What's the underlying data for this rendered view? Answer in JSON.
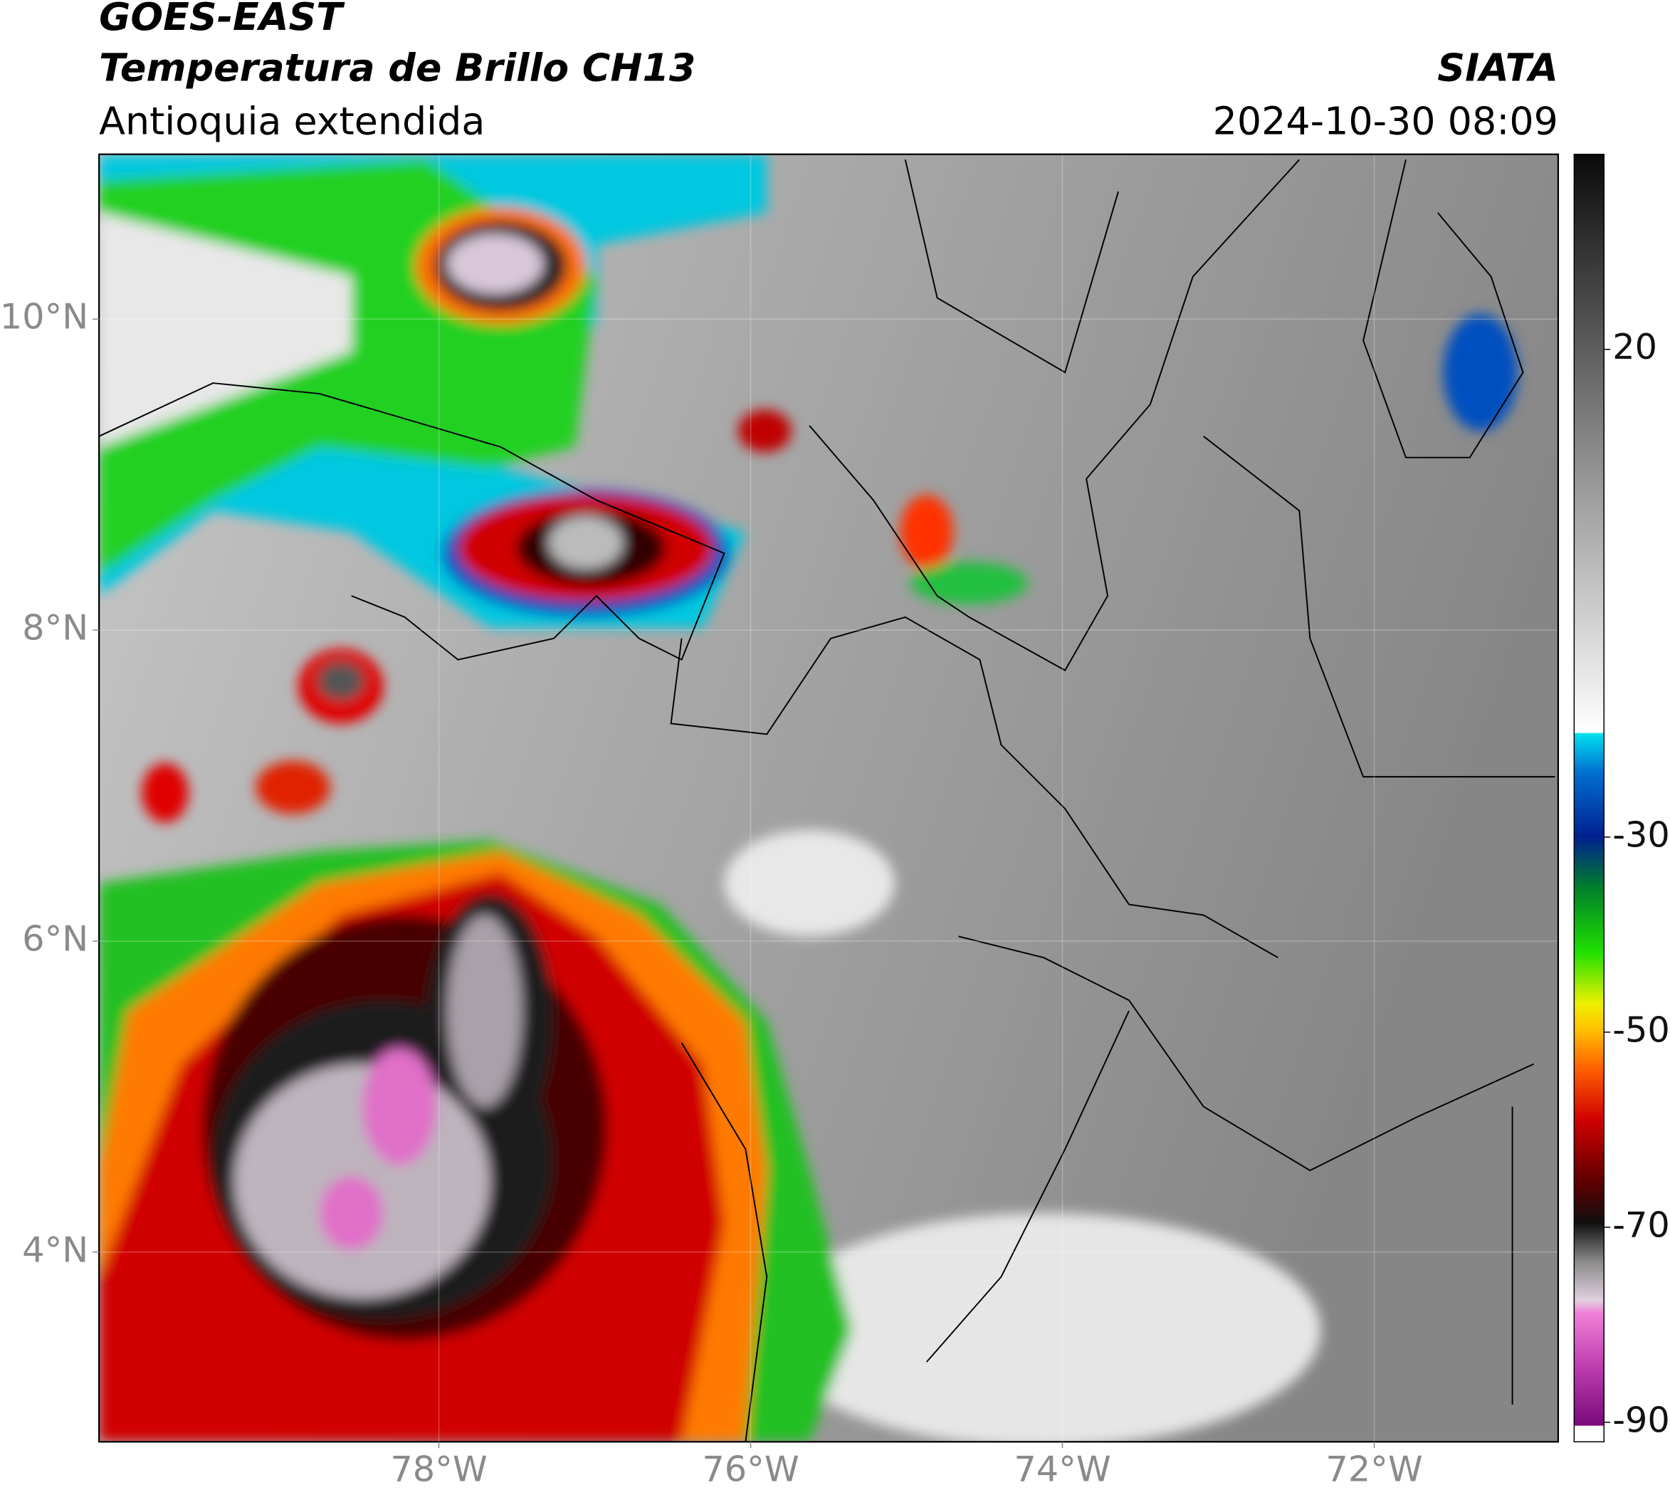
{
  "header": {
    "title": "GOES-EAST",
    "subtitle": "Temperatura de Brillo CH13",
    "region": "Antioquia extendida",
    "source": "SIATA",
    "datetime": "2024-10-30 08:09"
  },
  "map": {
    "lon_range": [
      -80.18,
      -70.82
    ],
    "lat_range": [
      2.78,
      11.06
    ],
    "lat_ticks": [
      {
        "value": 10,
        "label": "10°N"
      },
      {
        "value": 8,
        "label": "8°N"
      },
      {
        "value": 6,
        "label": "6°N"
      },
      {
        "value": 4,
        "label": "4°N"
      }
    ],
    "lon_ticks": [
      {
        "value": -78,
        "label": "78°W"
      },
      {
        "value": -76,
        "label": "76°W"
      },
      {
        "value": -74,
        "label": "74°W"
      },
      {
        "value": -72,
        "label": "72°W"
      }
    ]
  },
  "colorbar": {
    "range": [
      -92,
      40
    ],
    "ticks": [
      20,
      -30,
      -50,
      -70,
      -90
    ]
  }
}
